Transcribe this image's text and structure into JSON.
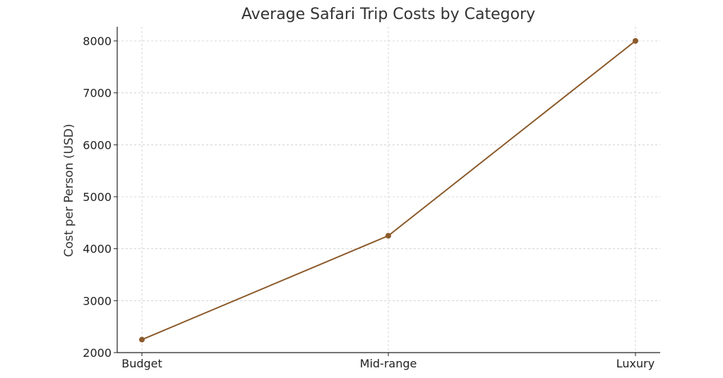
{
  "chart_data": {
    "type": "line",
    "title": "Average Safari Trip Costs by Category",
    "xlabel": "",
    "ylabel": "Cost per Person (USD)",
    "categories": [
      "Budget",
      "Mid-range",
      "Luxury"
    ],
    "series": [
      {
        "values": [
          2250,
          4250,
          8000
        ],
        "color": "#8B5A2B",
        "marker": "circle"
      }
    ],
    "ylim": [
      2000,
      8300
    ],
    "yticks": [
      2000,
      3000,
      4000,
      5000,
      6000,
      7000,
      8000
    ],
    "grid": true,
    "legend": "none"
  }
}
